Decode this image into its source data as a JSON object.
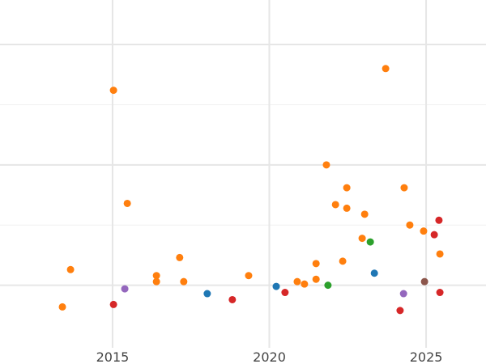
{
  "chart_data": {
    "type": "scatter",
    "title": "",
    "xlabel": "",
    "ylabel": "",
    "xlim": [
      2011.41,
      2026.91
    ],
    "ylim": [
      -0.52,
      2.37
    ],
    "grid": true,
    "x_ticks": [
      2015,
      2020,
      2025
    ],
    "x_tick_labels": [
      "2015",
      "2020",
      "2025"
    ],
    "y_gridlines": [
      0,
      0.5,
      1,
      1.5,
      2
    ],
    "y_tick_labels_shown": false,
    "legend": "none",
    "series": [
      {
        "color": "#ff7f0e",
        "points": [
          [
            2013.4,
            -0.18
          ],
          [
            2013.66,
            0.13
          ],
          [
            2015.03,
            1.62
          ],
          [
            2015.47,
            0.68
          ],
          [
            2016.4,
            0.08
          ],
          [
            2016.4,
            0.03
          ],
          [
            2017.14,
            0.23
          ],
          [
            2017.27,
            0.03
          ],
          [
            2019.34,
            0.08
          ],
          [
            2020.89,
            0.03
          ],
          [
            2021.12,
            0.01
          ],
          [
            2021.49,
            0.18
          ],
          [
            2021.49,
            0.05
          ],
          [
            2021.82,
            1.0
          ],
          [
            2022.11,
            0.67
          ],
          [
            2022.47,
            0.81
          ],
          [
            2022.47,
            0.64
          ],
          [
            2022.34,
            0.2
          ],
          [
            2022.96,
            0.39
          ],
          [
            2023.04,
            0.59
          ],
          [
            2023.71,
            1.8
          ],
          [
            2024.3,
            0.81
          ],
          [
            2024.48,
            0.5
          ],
          [
            2024.92,
            0.45
          ],
          [
            2025.44,
            0.26
          ]
        ]
      },
      {
        "color": "#9467bd",
        "points": [
          [
            2015.39,
            -0.03
          ],
          [
            2024.28,
            -0.07
          ]
        ]
      },
      {
        "color": "#d62728",
        "points": [
          [
            2015.03,
            -0.16
          ],
          [
            2018.82,
            -0.12
          ],
          [
            2020.5,
            -0.06
          ],
          [
            2024.17,
            -0.21
          ],
          [
            2025.26,
            0.42
          ],
          [
            2025.41,
            0.54
          ],
          [
            2025.44,
            -0.06
          ]
        ]
      },
      {
        "color": "#1f77b4",
        "points": [
          [
            2018.02,
            -0.07
          ],
          [
            2020.22,
            -0.01
          ],
          [
            2023.35,
            0.1
          ]
        ]
      },
      {
        "color": "#2ca02c",
        "points": [
          [
            2021.87,
            0.0
          ],
          [
            2023.22,
            0.36
          ]
        ]
      },
      {
        "color": "#8c564b",
        "points": [
          [
            2024.95,
            0.03
          ]
        ]
      }
    ]
  }
}
